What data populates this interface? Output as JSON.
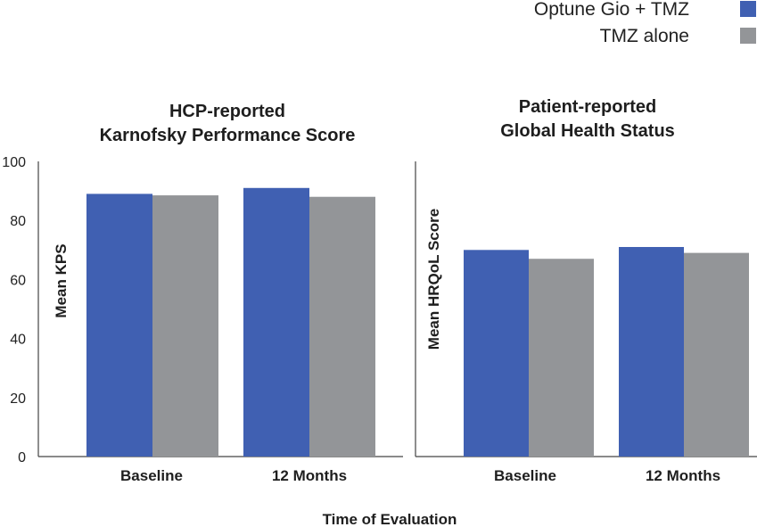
{
  "legend": [
    {
      "label": "Optune Gio + TMZ",
      "color": "#4060b2"
    },
    {
      "label": "TMZ alone",
      "color": "#939598"
    }
  ],
  "x_axis_title": "Time of Evaluation",
  "chart_data": [
    {
      "type": "bar",
      "title": "HCP-reported\nKarnofsky Performance Score",
      "title_lines": [
        "HCP-reported",
        "Karnofsky Performance Score"
      ],
      "ylabel": "Mean KPS",
      "ylim": [
        0,
        100
      ],
      "yticks": [
        0,
        20,
        40,
        60,
        80,
        100
      ],
      "show_yticks": true,
      "categories": [
        "Baseline",
        "12 Months"
      ],
      "series": [
        {
          "name": "Optune Gio + TMZ",
          "color": "#4060b2",
          "values": [
            89,
            91
          ]
        },
        {
          "name": "TMZ alone",
          "color": "#939598",
          "values": [
            88.5,
            88
          ]
        }
      ]
    },
    {
      "type": "bar",
      "title": "Patient-reported\nGlobal Health Status",
      "title_lines": [
        "Patient-reported",
        "Global Health Status"
      ],
      "ylabel": "Mean HRQoL Score",
      "ylim": [
        0,
        100
      ],
      "yticks": [],
      "show_yticks": false,
      "categories": [
        "Baseline",
        "12 Months"
      ],
      "series": [
        {
          "name": "Optune Gio + TMZ",
          "color": "#4060b2",
          "values": [
            70,
            71
          ]
        },
        {
          "name": "TMZ alone",
          "color": "#939598",
          "values": [
            67,
            69
          ]
        }
      ]
    }
  ]
}
